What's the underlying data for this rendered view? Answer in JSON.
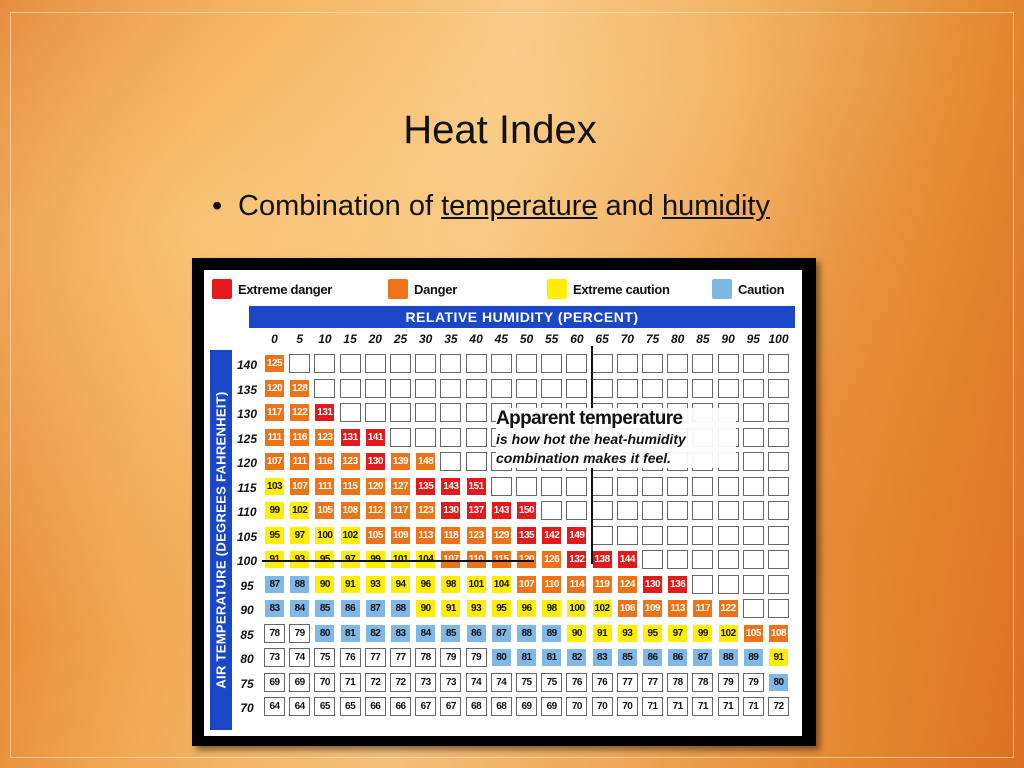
{
  "slide": {
    "title": "Heat Index",
    "bullet_prefix": "Combination of ",
    "bullet_link1": "temperature",
    "bullet_mid": " and ",
    "bullet_link2": "humidity"
  },
  "legend": [
    {
      "label": "Extreme danger",
      "color": "#e3191b"
    },
    {
      "label": "Danger",
      "color": "#ee7318"
    },
    {
      "label": "Extreme caution",
      "color": "#ffee00"
    },
    {
      "label": "Caution",
      "color": "#7fb8e6"
    }
  ],
  "chart_labels": {
    "humidity_axis": "RELATIVE HUMIDITY (PERCENT)",
    "temperature_axis": "AIR TEMPERATURE (DEGREES FAHRENHEIT)",
    "apparent_title": "Apparent temperature",
    "apparent_body_1": "is how hot the heat-humidity",
    "apparent_body_2": "combination makes it feel."
  },
  "chart_data": {
    "type": "table",
    "humidity": [
      0,
      5,
      10,
      15,
      20,
      25,
      30,
      35,
      40,
      45,
      50,
      55,
      60,
      65,
      70,
      75,
      80,
      85,
      90,
      95,
      100
    ],
    "temperatures": [
      140,
      135,
      130,
      125,
      120,
      115,
      110,
      105,
      100,
      95,
      90,
      85,
      80,
      75,
      70
    ],
    "rows": [
      [
        "125"
      ],
      [
        "120",
        "128"
      ],
      [
        "117",
        "122",
        "131"
      ],
      [
        "111",
        "116",
        "123",
        "131",
        "141"
      ],
      [
        "107",
        "111",
        "116",
        "123",
        "130",
        "139",
        "148"
      ],
      [
        "103",
        "107",
        "111",
        "115",
        "120",
        "127",
        "135",
        "143",
        "151"
      ],
      [
        "99",
        "102",
        "105",
        "108",
        "112",
        "117",
        "123",
        "130",
        "137",
        "143",
        "150"
      ],
      [
        "95",
        "97",
        "100",
        "102",
        "105",
        "109",
        "113",
        "118",
        "123",
        "129",
        "135",
        "142",
        "149"
      ],
      [
        "91",
        "93",
        "95",
        "97",
        "99",
        "101",
        "104",
        "107",
        "110",
        "115",
        "120",
        "126",
        "132",
        "138",
        "144"
      ],
      [
        "87",
        "88",
        "90",
        "91",
        "93",
        "94",
        "96",
        "98",
        "101",
        "104",
        "107",
        "110",
        "114",
        "119",
        "124",
        "130",
        "136"
      ],
      [
        "83",
        "84",
        "85",
        "86",
        "87",
        "88",
        "90",
        "91",
        "93",
        "95",
        "96",
        "98",
        "100",
        "102",
        "106",
        "109",
        "113",
        "117",
        "122"
      ],
      [
        "78",
        "79",
        "80",
        "81",
        "82",
        "83",
        "84",
        "85",
        "86",
        "87",
        "88",
        "89",
        "90",
        "91",
        "93",
        "95",
        "97",
        "99",
        "102",
        "105",
        "108"
      ],
      [
        "73",
        "74",
        "75",
        "76",
        "77",
        "77",
        "78",
        "79",
        "79",
        "80",
        "81",
        "81",
        "82",
        "83",
        "85",
        "86",
        "86",
        "87",
        "88",
        "89",
        "91"
      ],
      [
        "69",
        "69",
        "70",
        "71",
        "72",
        "72",
        "73",
        "73",
        "74",
        "74",
        "75",
        "75",
        "76",
        "76",
        "77",
        "77",
        "78",
        "78",
        "79",
        "79",
        "80"
      ],
      [
        "64",
        "64",
        "65",
        "65",
        "66",
        "66",
        "67",
        "67",
        "68",
        "68",
        "69",
        "69",
        "70",
        "70",
        "70",
        "71",
        "71",
        "71",
        "71",
        "71",
        "72"
      ]
    ],
    "colors": [
      [
        "orange"
      ],
      [
        "orange",
        "orange"
      ],
      [
        "orange",
        "orange",
        "red"
      ],
      [
        "orange",
        "orange",
        "orange",
        "red",
        "red"
      ],
      [
        "orange",
        "orange",
        "orange",
        "orange",
        "red",
        "orange",
        "orange"
      ],
      [
        "yellow",
        "orange",
        "orange",
        "orange",
        "orange",
        "orange",
        "red",
        "red",
        "red"
      ],
      [
        "yellow",
        "yellow",
        "orange",
        "orange",
        "orange",
        "orange",
        "orange",
        "red",
        "red",
        "red",
        "red"
      ],
      [
        "yellow",
        "yellow",
        "yellow",
        "yellow",
        "orange",
        "orange",
        "orange",
        "orange",
        "orange",
        "orange",
        "red",
        "red",
        "red"
      ],
      [
        "yellow",
        "yellow",
        "yellow",
        "yellow",
        "yellow",
        "yellow",
        "yellow",
        "orange",
        "orange",
        "orange",
        "orange",
        "orange",
        "red",
        "red",
        "red"
      ],
      [
        "blue",
        "blue",
        "yellow",
        "yellow",
        "yellow",
        "yellow",
        "yellow",
        "yellow",
        "yellow",
        "yellow",
        "orange",
        "orange",
        "orange",
        "orange",
        "orange",
        "red",
        "red"
      ],
      [
        "blue",
        "blue",
        "blue",
        "blue",
        "blue",
        "blue",
        "yellow",
        "yellow",
        "yellow",
        "yellow",
        "yellow",
        "yellow",
        "yellow",
        "yellow",
        "orange",
        "orange",
        "orange",
        "orange",
        "orange"
      ],
      [
        "white",
        "white",
        "blue",
        "blue",
        "blue",
        "blue",
        "blue",
        "blue",
        "blue",
        "blue",
        "blue",
        "blue",
        "yellow",
        "yellow",
        "yellow",
        "yellow",
        "yellow",
        "yellow",
        "yellow",
        "orange",
        "orange"
      ],
      [
        "white",
        "white",
        "white",
        "white",
        "white",
        "white",
        "white",
        "white",
        "white",
        "blue",
        "blue",
        "blue",
        "blue",
        "blue",
        "blue",
        "blue",
        "blue",
        "blue",
        "blue",
        "blue",
        "yellow"
      ],
      [
        "white",
        "white",
        "white",
        "white",
        "white",
        "white",
        "white",
        "white",
        "white",
        "white",
        "white",
        "white",
        "white",
        "white",
        "white",
        "white",
        "white",
        "white",
        "white",
        "white",
        "blue"
      ],
      [
        "white",
        "white",
        "white",
        "white",
        "white",
        "white",
        "white",
        "white",
        "white",
        "white",
        "white",
        "white",
        "white",
        "white",
        "white",
        "white",
        "white",
        "white",
        "white",
        "white",
        "white"
      ]
    ]
  }
}
